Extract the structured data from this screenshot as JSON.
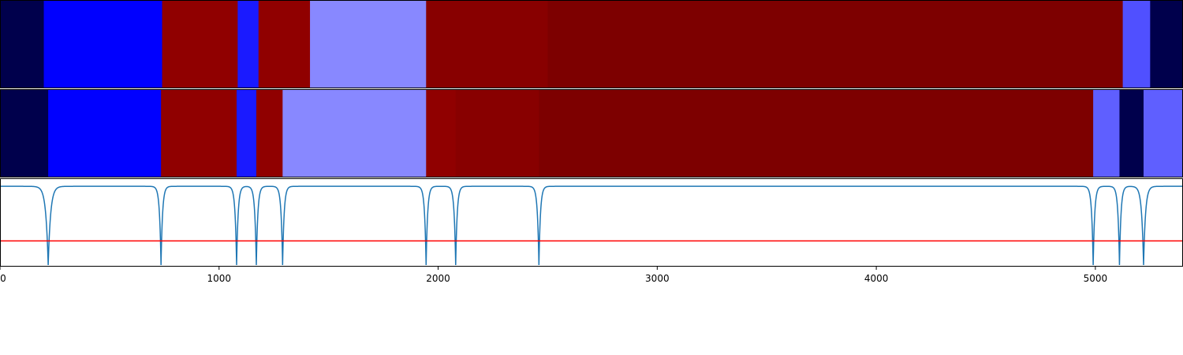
{
  "chart_data": {
    "type": "heatmap",
    "title": "",
    "xlabel": "",
    "ylabel": "",
    "xlim": [
      0,
      5400
    ],
    "grid": false,
    "x_ticks": [
      0,
      1000,
      2000,
      3000,
      4000,
      5000
    ],
    "x_tick_labels": [
      "0",
      "1000",
      "2000",
      "3000",
      "4000",
      "5000"
    ],
    "segment_rows": [
      {
        "segments": [
          {
            "start": 0,
            "end": 200,
            "color": "#00004c"
          },
          {
            "start": 200,
            "end": 740,
            "color": "#0000ff"
          },
          {
            "start": 740,
            "end": 1085,
            "color": "#900000"
          },
          {
            "start": 1085,
            "end": 1180,
            "color": "#1a1aff"
          },
          {
            "start": 1180,
            "end": 1415,
            "color": "#900000"
          },
          {
            "start": 1415,
            "end": 1945,
            "color": "#8888ff"
          },
          {
            "start": 1945,
            "end": 2500,
            "color": "#880000"
          },
          {
            "start": 2500,
            "end": 5125,
            "color": "#7d0000"
          },
          {
            "start": 5125,
            "end": 5250,
            "color": "#5050ff"
          },
          {
            "start": 5250,
            "end": 5400,
            "color": "#00004c"
          }
        ]
      },
      {
        "segments": [
          {
            "start": 0,
            "end": 220,
            "color": "#00004c"
          },
          {
            "start": 220,
            "end": 735,
            "color": "#0000ff"
          },
          {
            "start": 735,
            "end": 1080,
            "color": "#900000"
          },
          {
            "start": 1080,
            "end": 1170,
            "color": "#1a1aff"
          },
          {
            "start": 1170,
            "end": 1290,
            "color": "#900000"
          },
          {
            "start": 1290,
            "end": 1945,
            "color": "#8888ff"
          },
          {
            "start": 1945,
            "end": 2080,
            "color": "#900000"
          },
          {
            "start": 2080,
            "end": 2460,
            "color": "#880000"
          },
          {
            "start": 2460,
            "end": 4990,
            "color": "#7d0000"
          },
          {
            "start": 4990,
            "end": 5110,
            "color": "#5f5fff"
          },
          {
            "start": 5110,
            "end": 5220,
            "color": "#00004c"
          },
          {
            "start": 5220,
            "end": 5400,
            "color": "#5f5fff"
          }
        ]
      }
    ],
    "signal": {
      "color": "#1f77b4",
      "ylim": [
        0,
        1.1
      ],
      "baseline": 1.0,
      "dips": [
        {
          "x": 220,
          "depth": 0.98,
          "width": 35
        },
        {
          "x": 735,
          "depth": 0.98,
          "width": 22
        },
        {
          "x": 1080,
          "depth": 0.98,
          "width": 22
        },
        {
          "x": 1170,
          "depth": 0.98,
          "width": 22
        },
        {
          "x": 1290,
          "depth": 0.98,
          "width": 22
        },
        {
          "x": 1945,
          "depth": 0.98,
          "width": 22
        },
        {
          "x": 2080,
          "depth": 0.98,
          "width": 22
        },
        {
          "x": 2460,
          "depth": 0.98,
          "width": 22
        },
        {
          "x": 4990,
          "depth": 0.98,
          "width": 22
        },
        {
          "x": 5110,
          "depth": 0.98,
          "width": 22
        },
        {
          "x": 5220,
          "depth": 0.98,
          "width": 28
        }
      ],
      "threshold": 0.32,
      "threshold_color": "#ff0000"
    }
  }
}
